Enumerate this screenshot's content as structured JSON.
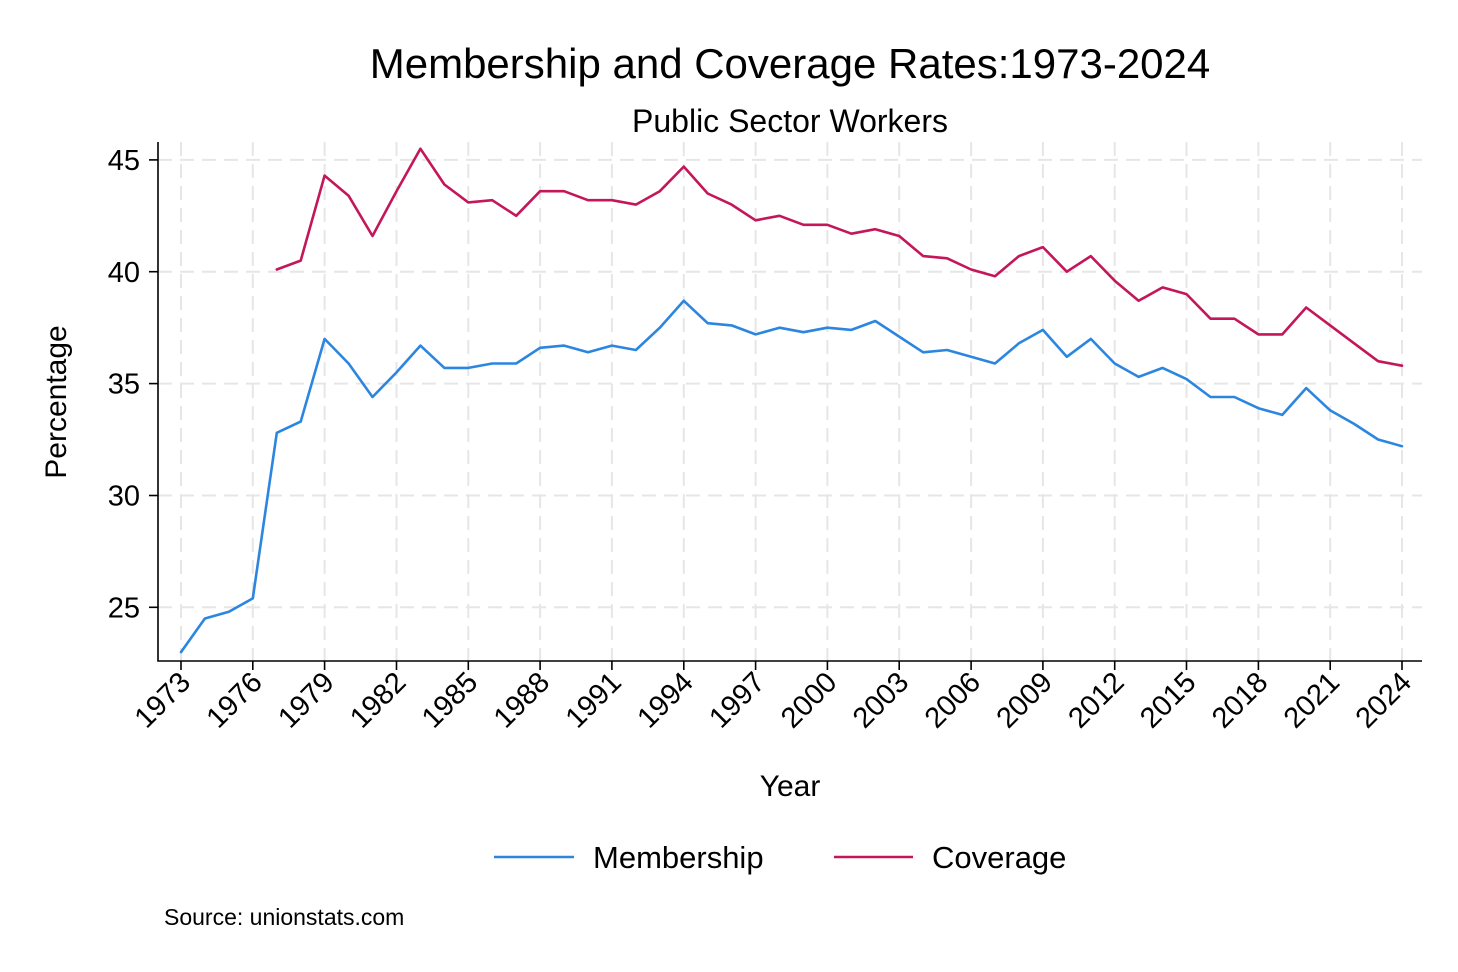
{
  "chart_data": {
    "type": "line",
    "title": "Membership and Coverage Rates:1973-2024",
    "subtitle": "Public Sector Workers",
    "xlabel": "Year",
    "ylabel": "Percentage",
    "source": "Source: unionstats.com",
    "xlim": [
      1973,
      2024
    ],
    "ylim": [
      22.6,
      45.8
    ],
    "x_ticks": [
      1973,
      1976,
      1979,
      1982,
      1985,
      1988,
      1991,
      1994,
      1997,
      2000,
      2003,
      2006,
      2009,
      2012,
      2015,
      2018,
      2021,
      2024
    ],
    "x_tick_labels": [
      "1973",
      "1976",
      "1979",
      "1982",
      "1985",
      "1988",
      "1991",
      "1994",
      "1997",
      "2000",
      "2003",
      "2006",
      "2009",
      "2012",
      "2015",
      "2018",
      "2021",
      "2024"
    ],
    "y_ticks": [
      25,
      30,
      35,
      40,
      45
    ],
    "y_tick_labels": [
      "25",
      "30",
      "35",
      "40",
      "45"
    ],
    "grid": true,
    "legend_position": "bottom",
    "series": [
      {
        "name": "Membership",
        "color": "#2c86e0",
        "x": [
          1973,
          1974,
          1975,
          1976,
          1977,
          1978,
          1979,
          1980,
          1981,
          1982,
          1983,
          1984,
          1985,
          1986,
          1987,
          1988,
          1989,
          1990,
          1991,
          1992,
          1993,
          1994,
          1995,
          1996,
          1997,
          1998,
          1999,
          2000,
          2001,
          2002,
          2003,
          2004,
          2005,
          2006,
          2007,
          2008,
          2009,
          2010,
          2011,
          2012,
          2013,
          2014,
          2015,
          2016,
          2017,
          2018,
          2019,
          2020,
          2021,
          2022,
          2023,
          2024
        ],
        "values": [
          23.0,
          24.5,
          24.8,
          25.4,
          32.8,
          33.3,
          37.0,
          35.9,
          34.4,
          35.5,
          36.7,
          35.7,
          35.7,
          35.9,
          35.9,
          36.6,
          36.7,
          36.4,
          36.7,
          36.5,
          37.5,
          38.7,
          37.7,
          37.6,
          37.2,
          37.5,
          37.3,
          37.5,
          37.4,
          37.8,
          37.1,
          36.4,
          36.5,
          36.2,
          35.9,
          36.8,
          37.4,
          36.2,
          37.0,
          35.9,
          35.3,
          35.7,
          35.2,
          34.4,
          34.4,
          33.9,
          33.6,
          34.8,
          33.8,
          33.2,
          32.5,
          32.2
        ]
      },
      {
        "name": "Coverage",
        "color": "#c3175a",
        "x": [
          1977,
          1978,
          1979,
          1980,
          1981,
          1982,
          1983,
          1984,
          1985,
          1986,
          1987,
          1988,
          1989,
          1990,
          1991,
          1992,
          1993,
          1994,
          1995,
          1996,
          1997,
          1998,
          1999,
          2000,
          2001,
          2002,
          2003,
          2004,
          2005,
          2006,
          2007,
          2008,
          2009,
          2010,
          2011,
          2012,
          2013,
          2014,
          2015,
          2016,
          2017,
          2018,
          2019,
          2020,
          2021,
          2022,
          2023,
          2024
        ],
        "values": [
          40.1,
          40.5,
          44.3,
          43.4,
          41.6,
          43.6,
          45.5,
          43.9,
          43.1,
          43.2,
          42.5,
          43.6,
          43.6,
          43.2,
          43.2,
          43.0,
          43.6,
          44.7,
          43.5,
          43.0,
          42.3,
          42.5,
          42.1,
          42.1,
          41.7,
          41.9,
          41.6,
          40.7,
          40.6,
          40.1,
          39.8,
          40.7,
          41.1,
          40.0,
          40.7,
          39.6,
          38.7,
          39.3,
          39.0,
          37.9,
          37.9,
          37.2,
          37.2,
          38.4,
          37.6,
          36.8,
          36.0,
          35.8
        ]
      }
    ]
  }
}
